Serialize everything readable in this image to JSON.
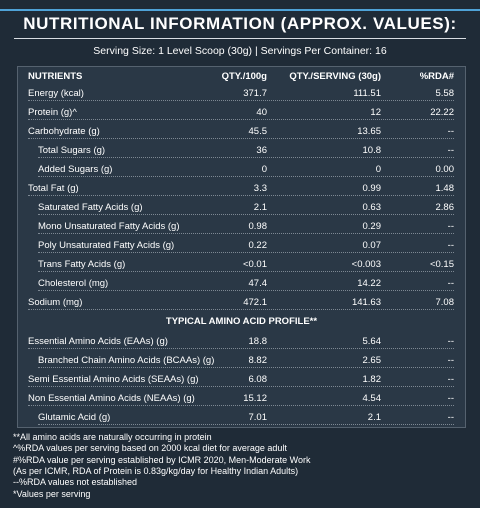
{
  "title": "NUTRITIONAL INFORMATION (APPROX. VALUES):",
  "serving_info": "Serving Size: 1 Level Scoop (30g)  |  Servings Per Container: 16",
  "table": {
    "header": [
      "NUTRIENTS",
      "QTY./100g",
      "QTY./SERVING (30g)",
      "%RDA#"
    ],
    "rows": [
      [
        "Energy (kcal)",
        "371.7",
        "111.51",
        "5.58"
      ],
      [
        "Protein (g)^",
        "40",
        "12",
        "22.22"
      ],
      [
        "Carbohydrate (g)",
        "45.5",
        "13.65",
        "--"
      ],
      [
        "Total Sugars (g)",
        "36",
        "10.8",
        "--"
      ],
      [
        "Added Sugars (g)",
        "0",
        "0",
        "0.00"
      ],
      [
        "Total Fat (g)",
        "3.3",
        "0.99",
        "1.48"
      ],
      [
        "Saturated Fatty Acids (g)",
        "2.1",
        "0.63",
        "2.86"
      ],
      [
        "Mono Unsaturated Fatty Acids (g)",
        "0.98",
        "0.29",
        "--"
      ],
      [
        "Poly Unsaturated Fatty Acids (g)",
        "0.22",
        "0.07",
        "--"
      ],
      [
        "Trans Fatty Acids (g)",
        "<0.01",
        "<0.003",
        "<0.15"
      ],
      [
        "Cholesterol (mg)",
        "47.4",
        "14.22",
        "--"
      ],
      [
        "Sodium (mg)",
        "472.1",
        "141.63",
        "7.08"
      ]
    ],
    "section_title": "TYPICAL AMINO ACID PROFILE**",
    "amino_rows": [
      [
        "Essential Amino Acids (EAAs) (g)",
        "18.8",
        "5.64",
        "--"
      ],
      [
        "Branched Chain Amino Acids (BCAAs) (g)",
        "8.82",
        "2.65",
        "--"
      ],
      [
        "Semi Essential Amino Acids (SEAAs) (g)",
        "6.08",
        "1.82",
        "--"
      ],
      [
        "Non Essential Amino Acids (NEAAs) (g)",
        "15.12",
        "4.54",
        "--"
      ],
      [
        "Glutamic Acid (g)",
        "7.01",
        "2.1",
        "--"
      ]
    ]
  },
  "footnotes": [
    "**All amino acids are naturally occurring in protein",
    "^%RDA values per serving based on 2000 kcal diet for average adult",
    "#%RDA value per serving established by ICMR 2020, Men-Moderate Work",
    "(As per ICMR, RDA of Protein is 0.83g/kg/day for Healthy Indian Adults)",
    "--%RDA values not established",
    "*Values per serving"
  ]
}
